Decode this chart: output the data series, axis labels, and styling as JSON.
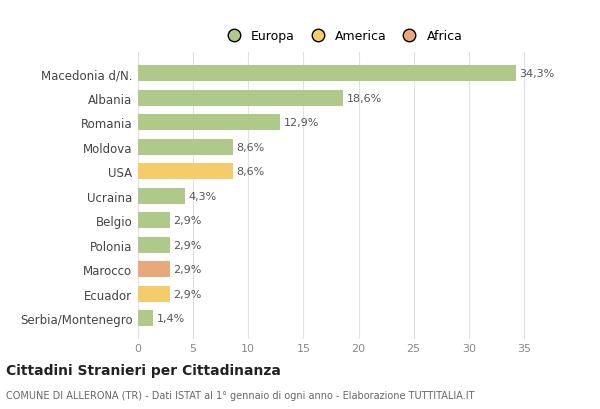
{
  "categories": [
    "Macedonia d/N.",
    "Albania",
    "Romania",
    "Moldova",
    "USA",
    "Ucraina",
    "Belgio",
    "Polonia",
    "Marocco",
    "Ecuador",
    "Serbia/Montenegro"
  ],
  "values": [
    34.3,
    18.6,
    12.9,
    8.6,
    8.6,
    4.3,
    2.9,
    2.9,
    2.9,
    2.9,
    1.4
  ],
  "labels": [
    "34,3%",
    "18,6%",
    "12,9%",
    "8,6%",
    "8,6%",
    "4,3%",
    "2,9%",
    "2,9%",
    "2,9%",
    "2,9%",
    "1,4%"
  ],
  "colors": [
    "#aec98a",
    "#aec98a",
    "#aec98a",
    "#aec98a",
    "#f5cc6b",
    "#aec98a",
    "#aec98a",
    "#aec98a",
    "#e8a87a",
    "#f5cc6b",
    "#aec98a"
  ],
  "legend_labels": [
    "Europa",
    "America",
    "Africa"
  ],
  "legend_colors": [
    "#aec98a",
    "#f5cc6b",
    "#e8a87a"
  ],
  "title": "Cittadini Stranieri per Cittadinanza",
  "subtitle": "COMUNE DI ALLERONA (TR) - Dati ISTAT al 1° gennaio di ogni anno - Elaborazione TUTTITALIA.IT",
  "xlim": [
    0,
    37
  ],
  "xticks": [
    0,
    5,
    10,
    15,
    20,
    25,
    30,
    35
  ],
  "bg_color": "#ffffff",
  "grid_color": "#e0e0e0",
  "bar_height": 0.65
}
